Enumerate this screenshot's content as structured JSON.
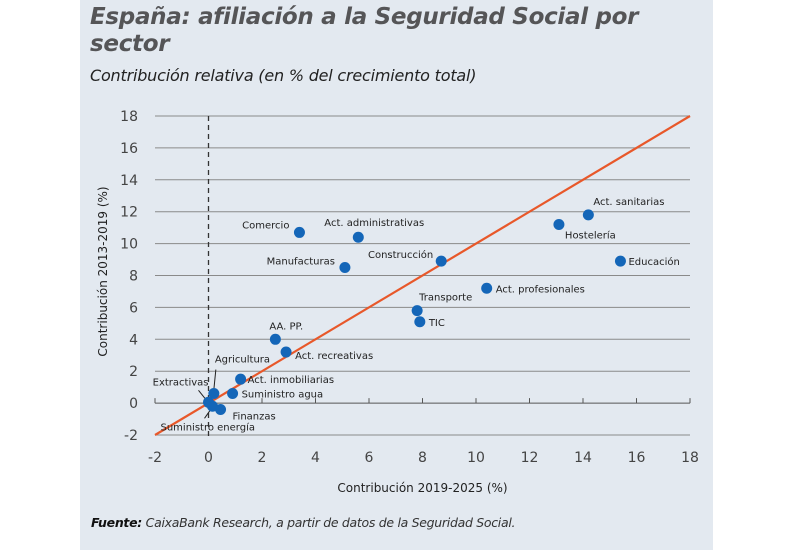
{
  "header": {
    "title": "España: afiliación a la Seguridad Social por sector",
    "subtitle": "Contribución relativa (en % del crecimiento total)"
  },
  "footer": {
    "source_label": "Fuente:",
    "source_text": " CaixaBank Research, a partir de datos de la Seguridad Social."
  },
  "colors": {
    "background": "#e3e9f0",
    "points": "#1466b8",
    "reference_line": "#e8582a",
    "gridlines": "#8a8a8a"
  },
  "chart_data": {
    "type": "scatter",
    "title": "España: afiliación a la Seguridad Social por sector",
    "subtitle": "Contribución relativa (en % del crecimiento total)",
    "xlabel": "Contribución 2019-2025 (%)",
    "ylabel": "Contribución 2013-2019 (%)",
    "xlim": [
      -2,
      18
    ],
    "ylim": [
      -2,
      18
    ],
    "xticks": [
      -2,
      0,
      2,
      4,
      6,
      8,
      10,
      12,
      14,
      16,
      18
    ],
    "yticks": [
      -2,
      0,
      2,
      4,
      6,
      8,
      10,
      12,
      14,
      16,
      18
    ],
    "grid": "horizontal",
    "vertical_reference": {
      "x": 0,
      "style": "dashed"
    },
    "reference_line": {
      "label": "45-degree line",
      "from": [
        -2,
        -2
      ],
      "to": [
        18,
        18
      ]
    },
    "points": [
      {
        "label": "Comercio",
        "x": 3.4,
        "y": 10.7
      },
      {
        "label": "Act. administrativas",
        "x": 5.6,
        "y": 10.4
      },
      {
        "label": "Manufacturas",
        "x": 5.1,
        "y": 8.5
      },
      {
        "label": "Construcción",
        "x": 8.7,
        "y": 8.9
      },
      {
        "label": "Act. sanitarias",
        "x": 14.2,
        "y": 11.8
      },
      {
        "label": "Hostelería",
        "x": 13.1,
        "y": 11.2
      },
      {
        "label": "Educación",
        "x": 15.4,
        "y": 8.9
      },
      {
        "label": "Act. profesionales",
        "x": 10.4,
        "y": 7.2
      },
      {
        "label": "Transporte",
        "x": 7.8,
        "y": 5.8
      },
      {
        "label": "TIC",
        "x": 7.9,
        "y": 5.1
      },
      {
        "label": "AA. PP.",
        "x": 2.5,
        "y": 4.0
      },
      {
        "label": "Act. recreativas",
        "x": 2.9,
        "y": 3.2
      },
      {
        "label": "Act. inmobiliarias",
        "x": 1.2,
        "y": 1.5
      },
      {
        "label": "Suministro agua",
        "x": 0.9,
        "y": 0.6
      },
      {
        "label": "Agricultura",
        "x": 0.2,
        "y": 0.6
      },
      {
        "label": "Extractivas",
        "x": 0.0,
        "y": 0.05
      },
      {
        "label": "Suministro energía",
        "x": 0.15,
        "y": -0.2
      },
      {
        "label": "Finanzas",
        "x": 0.45,
        "y": -0.4
      }
    ]
  }
}
